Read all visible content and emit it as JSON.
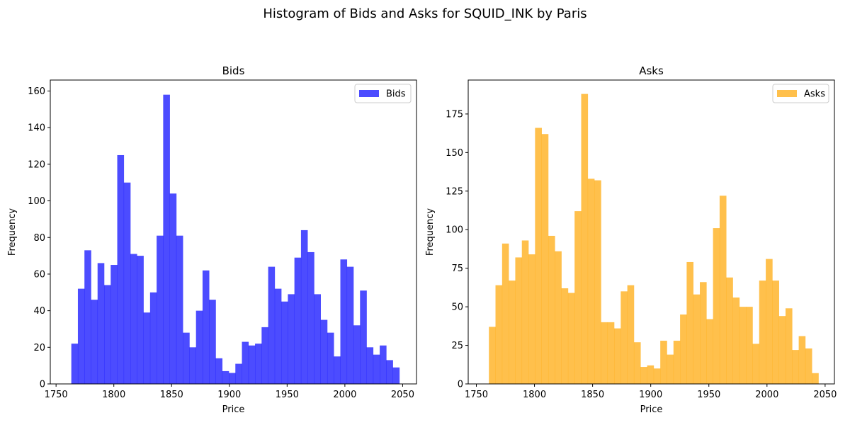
{
  "figure": {
    "title": "Histogram of Bids and Asks for SQUID_INK by Paris"
  },
  "chart_data": [
    {
      "type": "bar",
      "title": "Bids",
      "xlabel": "Price",
      "ylabel": "Frequency",
      "xlim": [
        1745,
        2062
      ],
      "ylim": [
        0,
        166
      ],
      "xticks": [
        1750,
        1800,
        1850,
        1900,
        1950,
        2000,
        2050
      ],
      "yticks": [
        0,
        20,
        40,
        60,
        80,
        100,
        120,
        140,
        160
      ],
      "grid": false,
      "legend": {
        "label": "Bids",
        "position": "top-right"
      },
      "color": "#0000ff",
      "opacity": 0.7,
      "bin_start": 1763.2,
      "bin_width": 5.68,
      "values": [
        22,
        52,
        73,
        46,
        66,
        54,
        65,
        125,
        110,
        71,
        70,
        39,
        50,
        81,
        158,
        104,
        81,
        28,
        20,
        40,
        62,
        46,
        14,
        7,
        6,
        11,
        23,
        21,
        22,
        31,
        64,
        52,
        45,
        49,
        69,
        84,
        72,
        49,
        35,
        28,
        15,
        68,
        64,
        32,
        51,
        20,
        16,
        21,
        13,
        9
      ]
    },
    {
      "type": "bar",
      "title": "Asks",
      "xlabel": "Price",
      "ylabel": "Frequency",
      "xlim": [
        1743,
        2058
      ],
      "ylim": [
        0,
        197
      ],
      "xticks": [
        1750,
        1800,
        1850,
        1900,
        1950,
        2000,
        2050
      ],
      "yticks": [
        0,
        25,
        50,
        75,
        100,
        125,
        150,
        175
      ],
      "grid": false,
      "legend": {
        "label": "Asks",
        "position": "top-right"
      },
      "color": "#ffa500",
      "opacity": 0.7,
      "bin_start": 1760.8,
      "bin_width": 5.67,
      "values": [
        37,
        64,
        91,
        67,
        82,
        93,
        84,
        166,
        162,
        96,
        86,
        62,
        59,
        112,
        188,
        133,
        132,
        40,
        40,
        36,
        60,
        64,
        27,
        11,
        12,
        10,
        28,
        19,
        28,
        45,
        79,
        58,
        66,
        42,
        101,
        122,
        69,
        56,
        50,
        50,
        26,
        67,
        81,
        67,
        44,
        49,
        22,
        31,
        23,
        7
      ]
    }
  ]
}
